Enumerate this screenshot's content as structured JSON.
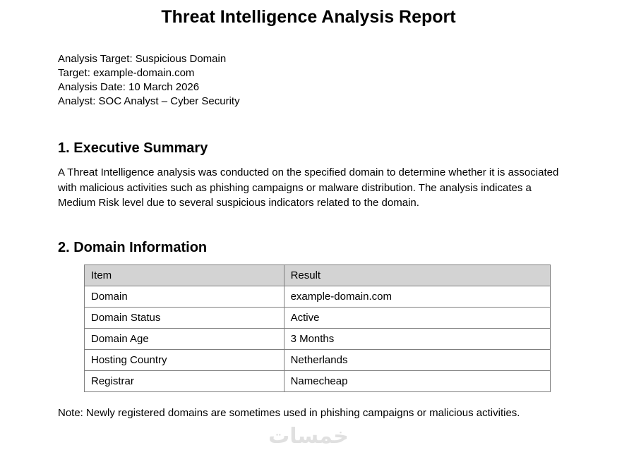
{
  "page": {
    "title": "Threat Intelligence Analysis Report"
  },
  "meta": {
    "lines": [
      "Analysis Target: Suspicious Domain",
      "Target: example-domain.com",
      "Analysis Date: 10 March 2026",
      "Analyst: SOC Analyst – Cyber Security"
    ]
  },
  "sections": {
    "executive_summary": {
      "heading": "1. Executive Summary",
      "body": "A Threat Intelligence analysis was conducted on the specified domain to determine whether it is associated with malicious activities such as phishing campaigns or malware distribution. The analysis indicates a Medium Risk level due to several suspicious indicators related to the domain."
    },
    "domain_information": {
      "heading": "2. Domain Information",
      "table": {
        "headers": {
          "item": "Item",
          "result": "Result"
        },
        "rows": [
          {
            "item": "Domain",
            "result": "example-domain.com"
          },
          {
            "item": "Domain Status",
            "result": "Active"
          },
          {
            "item": "Domain Age",
            "result": "3 Months"
          },
          {
            "item": "Hosting Country",
            "result": "Netherlands"
          },
          {
            "item": "Registrar",
            "result": "Namecheap"
          }
        ]
      },
      "note": "Note: Newly registered domains are sometimes used in phishing campaigns or malicious activities."
    }
  },
  "watermark": {
    "text": "خمسات"
  },
  "colors": {
    "table_header_fill": "#d3d3d3",
    "table_border": "#7f7f7f",
    "watermark": "#e0e0e0",
    "text": "#000000"
  }
}
